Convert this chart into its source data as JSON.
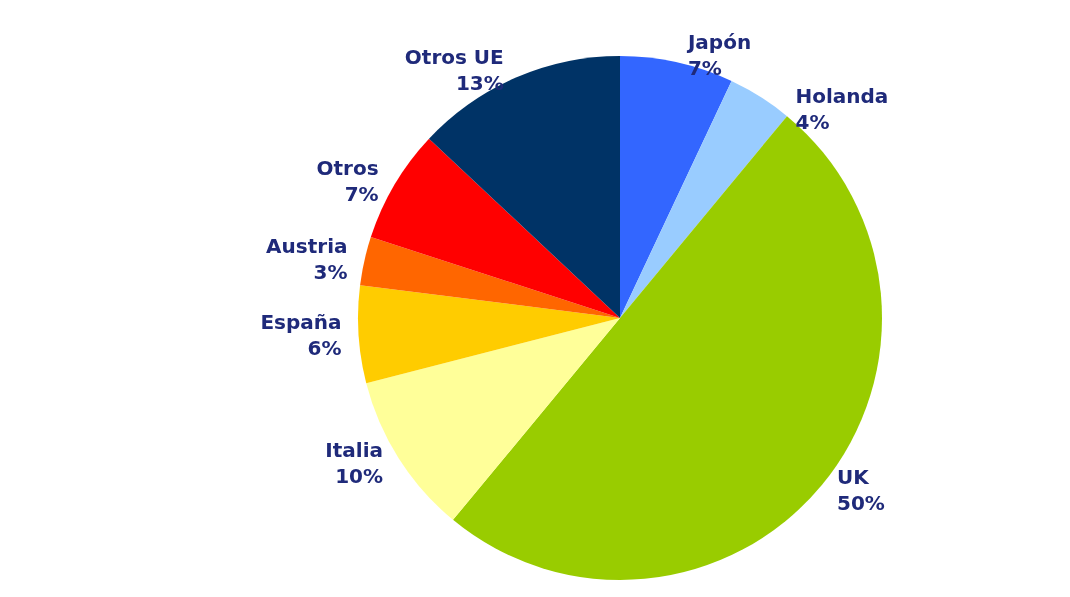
{
  "chart_data": {
    "type": "pie",
    "categories": [
      "Japón",
      "Holanda",
      "UK",
      "Italia",
      "España",
      "Austria",
      "Otros",
      "Otros UE"
    ],
    "values": [
      7,
      4,
      50,
      10,
      6,
      3,
      7,
      13
    ],
    "value_labels": [
      "7%",
      "4%",
      "50%",
      "10%",
      "6%",
      "3%",
      "7%",
      "13%"
    ],
    "colors": [
      "#3366ff",
      "#99ccff",
      "#99cc00",
      "#ffff99",
      "#ffcc00",
      "#ff6600",
      "#ff0000",
      "#003366"
    ],
    "legend": false
  }
}
